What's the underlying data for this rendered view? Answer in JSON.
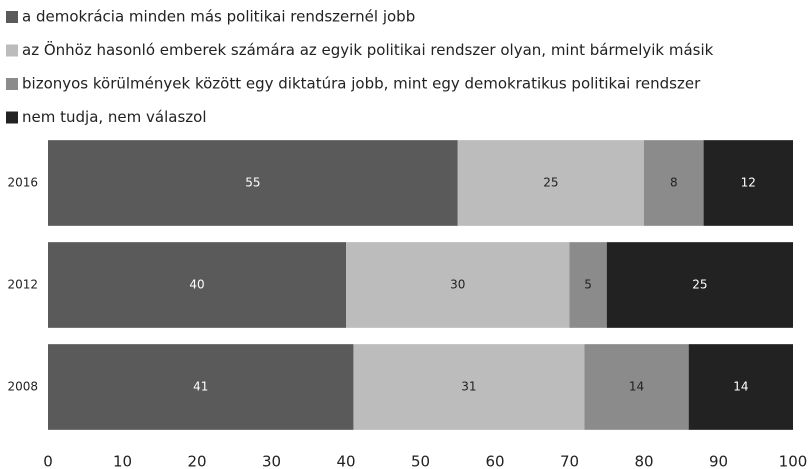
{
  "chart_data": {
    "type": "stacked_barh",
    "categories": [
      "2016",
      "2012",
      "2008"
    ],
    "series": [
      {
        "name": "a demokrácia minden más politikai rendszernél jobb",
        "color": "#5a5a5a",
        "values": [
          55,
          40,
          41
        ]
      },
      {
        "name": "az Önhöz hasonló emberek számára az egyik politikai rendszer olyan, mint bármelyik másik",
        "color": "#bcbcbc",
        "values": [
          25,
          30,
          31
        ]
      },
      {
        "name": "bizonyos körülmények között egy diktatúra jobb, mint egy demokratikus politikai rendszer",
        "color": "#8b8b8b",
        "values": [
          8,
          5,
          14
        ]
      },
      {
        "name": "nem tudja, nem válaszol",
        "color": "#222222",
        "values": [
          12,
          25,
          14
        ]
      }
    ],
    "xlim": [
      0,
      100
    ],
    "xticks": [
      0,
      10,
      20,
      30,
      40,
      50,
      60,
      70,
      80,
      90,
      100
    ],
    "legend": "top",
    "grid": false
  }
}
